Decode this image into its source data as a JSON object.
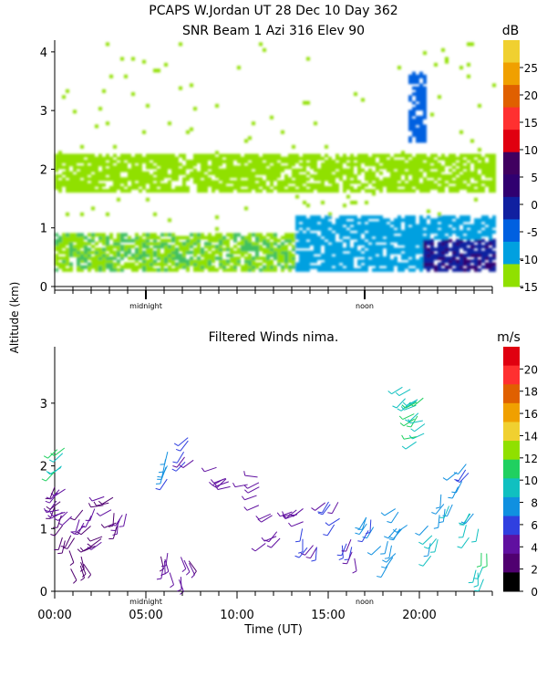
{
  "title": {
    "line1": "PCAPS W.Jordan UT  28 Dec 10 Day 362",
    "line2": "SNR Beam 1 Azi 316 Elev 90"
  },
  "shared_ylabel": "Altitude (km)",
  "chart_data": [
    {
      "type": "heatmap",
      "name": "snr",
      "title": "",
      "xlim": [
        0,
        24
      ],
      "ylim": [
        0,
        4.2
      ],
      "yticks": [
        0,
        1,
        2,
        3,
        4
      ],
      "x_markers": [
        {
          "label": "midnight",
          "x": 5
        },
        {
          "label": "noon",
          "x": 17
        }
      ],
      "colorbar": {
        "unit": "dB",
        "ticks": [
          -15,
          -10,
          -5,
          0,
          5,
          10,
          15,
          20,
          25
        ],
        "range": [
          -15,
          30
        ],
        "colors": [
          "#90e000",
          "#00a0e0",
          "#0060e0",
          "#1020a0",
          "#300070",
          "#400060",
          "#e00010",
          "#ff3030",
          "#e06000",
          "#f0a000",
          "#f0d030"
        ]
      },
      "features": [
        {
          "desc": "low layer",
          "x": [
            0,
            24
          ],
          "y": [
            0.25,
            0.9
          ],
          "snr": -12
        },
        {
          "desc": "growing boundary layer afternoon",
          "x": [
            13,
            24
          ],
          "y": [
            0.25,
            1.2
          ],
          "snr": -5
        },
        {
          "desc": "strong return afternoon",
          "x": [
            20,
            24
          ],
          "y": [
            0.25,
            0.8
          ],
          "snr": 5
        },
        {
          "desc": "band near 2 km",
          "x": [
            0,
            24
          ],
          "y": [
            1.6,
            2.2
          ],
          "snr": -13
        },
        {
          "desc": "cloud plume",
          "x": [
            19.3,
            20.3
          ],
          "y": [
            2.4,
            3.6
          ],
          "snr": 0
        }
      ]
    },
    {
      "type": "scatter",
      "name": "winds",
      "title": "Filtered Winds nima.",
      "xlabel": "Time (UT)",
      "xlim": [
        0,
        24
      ],
      "ylim": [
        0,
        3.9
      ],
      "xticks": [
        {
          "v": 0,
          "label": "00:00"
        },
        {
          "v": 5,
          "label": "05:00"
        },
        {
          "v": 10,
          "label": "10:00"
        },
        {
          "v": 15,
          "label": "15:00"
        },
        {
          "v": 20,
          "label": "20:00"
        }
      ],
      "yticks": [
        0,
        1,
        2,
        3
      ],
      "x_markers": [
        {
          "label": "midnight",
          "x": 5
        },
        {
          "label": "noon",
          "x": 17
        }
      ],
      "colorbar": {
        "unit": "m/s",
        "ticks": [
          0,
          2,
          4,
          6,
          8,
          10,
          12,
          14,
          16,
          18,
          20
        ],
        "range": [
          0,
          22
        ],
        "colors": [
          "#000000",
          "#500070",
          "#6010a0",
          "#3040e0",
          "#1090e0",
          "#10c0c0",
          "#20d060",
          "#90e000",
          "#f0d030",
          "#f0a000",
          "#e06000",
          "#ff3030",
          "#e00010"
        ]
      },
      "points": [
        {
          "t": 0.2,
          "z": 1.6,
          "speed": 4,
          "dir": 220
        },
        {
          "t": 0.5,
          "z": 1.3,
          "speed": 4,
          "dir": 240
        },
        {
          "t": 0.8,
          "z": 1.0,
          "speed": 3,
          "dir": 200
        },
        {
          "t": 1.2,
          "z": 0.6,
          "speed": 3,
          "dir": 160
        },
        {
          "t": 1.8,
          "z": 1.2,
          "speed": 4,
          "dir": 210
        },
        {
          "t": 2.2,
          "z": 0.9,
          "speed": 3,
          "dir": 230
        },
        {
          "t": 3.0,
          "z": 1.3,
          "speed": 3,
          "dir": 250
        },
        {
          "t": 3.6,
          "z": 1.0,
          "speed": 4,
          "dir": 200
        },
        {
          "t": 0.3,
          "z": 2.15,
          "speed": 10,
          "dir": 240
        },
        {
          "t": 6.3,
          "z": 2.0,
          "speed": 7,
          "dir": 210
        },
        {
          "t": 7.2,
          "z": 2.3,
          "speed": 5,
          "dir": 230
        },
        {
          "t": 6.0,
          "z": 0.5,
          "speed": 4,
          "dir": 180
        },
        {
          "t": 7.0,
          "z": 0.3,
          "speed": 4,
          "dir": 160
        },
        {
          "t": 9.3,
          "z": 1.8,
          "speed": 4,
          "dir": 240
        },
        {
          "t": 11.0,
          "z": 1.6,
          "speed": 4,
          "dir": 260
        },
        {
          "t": 12.0,
          "z": 1.0,
          "speed": 4,
          "dir": 230
        },
        {
          "t": 13.2,
          "z": 1.3,
          "speed": 4,
          "dir": 250
        },
        {
          "t": 14.0,
          "z": 0.8,
          "speed": 5,
          "dir": 200
        },
        {
          "t": 15.2,
          "z": 1.2,
          "speed": 5,
          "dir": 220
        },
        {
          "t": 16.0,
          "z": 0.6,
          "speed": 5,
          "dir": 190
        },
        {
          "t": 17.5,
          "z": 1.0,
          "speed": 7,
          "dir": 200
        },
        {
          "t": 18.3,
          "z": 0.6,
          "speed": 8,
          "dir": 210
        },
        {
          "t": 19.0,
          "z": 1.1,
          "speed": 8,
          "dir": 220
        },
        {
          "t": 19.5,
          "z": 3.2,
          "speed": 10,
          "dir": 240
        },
        {
          "t": 19.9,
          "z": 2.9,
          "speed": 11,
          "dir": 230
        },
        {
          "t": 20.2,
          "z": 2.6,
          "speed": 10,
          "dir": 240
        },
        {
          "t": 20.6,
          "z": 0.8,
          "speed": 9,
          "dir": 210
        },
        {
          "t": 21.5,
          "z": 1.4,
          "speed": 8,
          "dir": 200
        },
        {
          "t": 22.5,
          "z": 1.9,
          "speed": 7,
          "dir": 220
        },
        {
          "t": 23.0,
          "z": 1.0,
          "speed": 9,
          "dir": 200
        },
        {
          "t": 23.4,
          "z": 0.4,
          "speed": 10,
          "dir": 190
        }
      ]
    }
  ]
}
